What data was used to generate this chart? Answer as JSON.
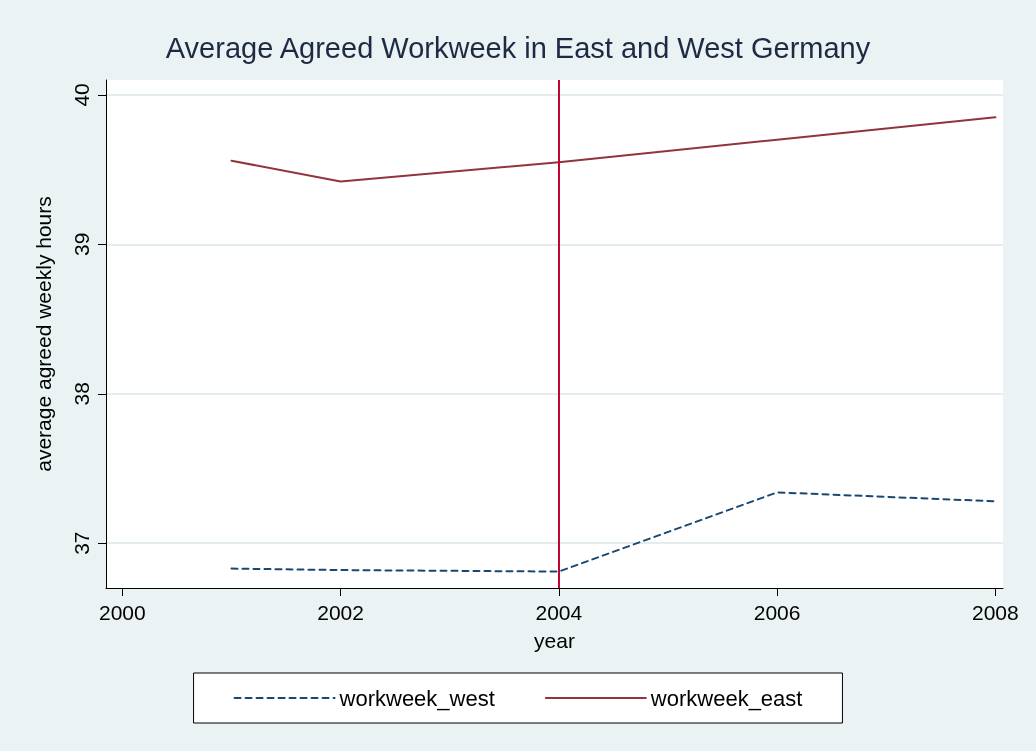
{
  "chart_data": {
    "type": "line",
    "title": "Average Agreed Workweek in East and West Germany",
    "xlabel": "year",
    "ylabel": "average agreed weekly hours",
    "x": [
      2001,
      2002,
      2004,
      2006,
      2008
    ],
    "series": [
      {
        "name": "workweek_west",
        "color": "#1a476f",
        "line_style": "dashed",
        "values": [
          36.83,
          36.82,
          36.81,
          37.34,
          37.28
        ]
      },
      {
        "name": "workweek_east",
        "color": "#90353b",
        "line_style": "solid",
        "values": [
          39.56,
          39.42,
          39.55,
          39.7,
          39.85
        ]
      }
    ],
    "xlim": [
      1999.85,
      2008.07
    ],
    "xticks": [
      2000,
      2002,
      2004,
      2006,
      2008
    ],
    "ylim": [
      36.7,
      40.1
    ],
    "yticks": [
      37,
      38,
      39,
      40
    ],
    "ref_lines": [
      {
        "axis": "x",
        "value": 2004,
        "color": "#c10534"
      }
    ],
    "grid": "y",
    "legend": "bottom",
    "marker": "none"
  }
}
